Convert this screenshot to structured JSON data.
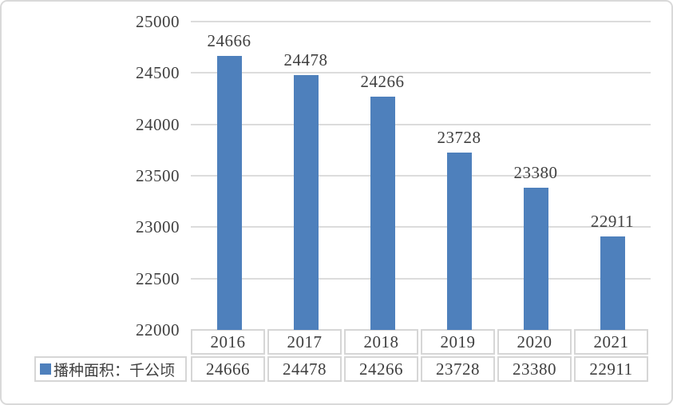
{
  "chart_data": {
    "type": "bar",
    "title": "",
    "categories": [
      "2016",
      "2017",
      "2018",
      "2019",
      "2020",
      "2021"
    ],
    "series": [
      {
        "name": "播种面积：千公顷",
        "values": [
          24666,
          24478,
          24266,
          23728,
          23380,
          22911
        ]
      }
    ],
    "yticks": [
      "25000",
      "24500",
      "24000",
      "23500",
      "23000",
      "22500",
      "22000"
    ],
    "ytick_values": [
      25000,
      24500,
      24000,
      23500,
      23000,
      22500,
      22000
    ],
    "ylim": [
      22000,
      25000
    ],
    "grid": "horizontal",
    "data_labels_shown": true,
    "data_table_shown": true,
    "legend_position": "bottom-left",
    "colors": {
      "bar": "#4E80BC",
      "grid": "#DCDCDC",
      "text": "#3F3F3F",
      "table_border": "#D6D6D6",
      "frame_border": "#D9D9D9",
      "background": "#FFFFFF"
    }
  }
}
